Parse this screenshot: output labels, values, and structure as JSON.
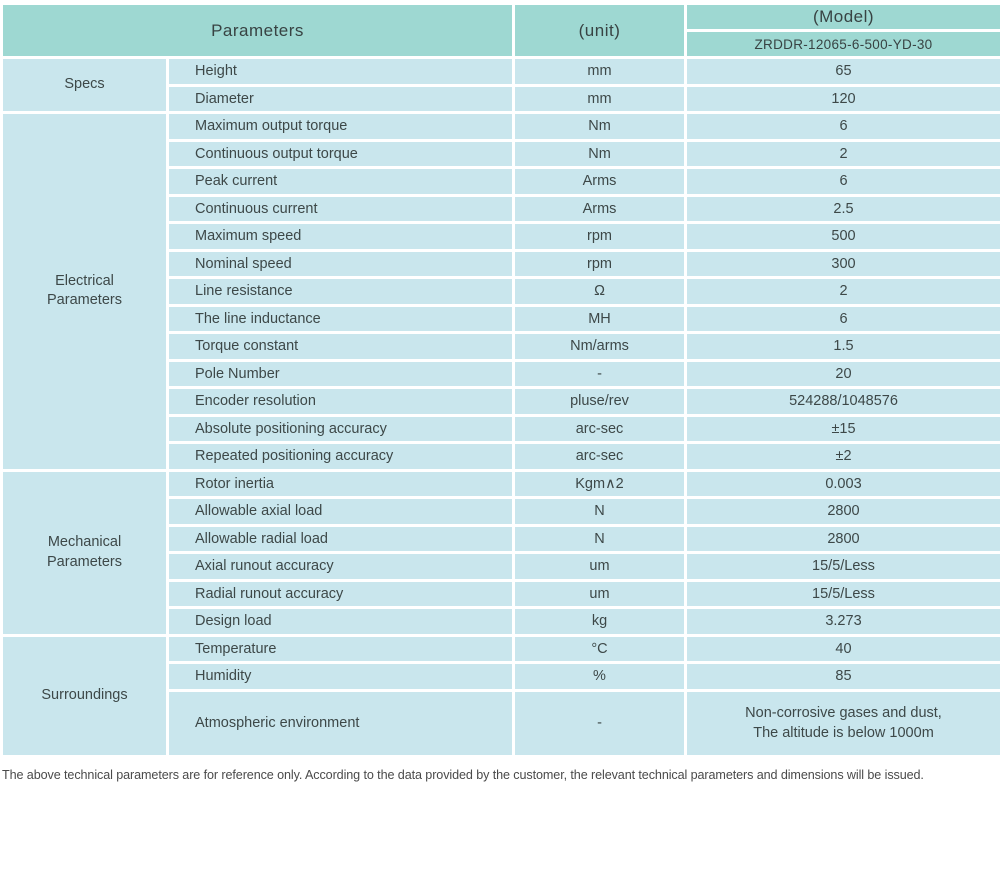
{
  "table": {
    "header": {
      "parameters": "Parameters",
      "unit": "(unit)",
      "model": "(Model)",
      "model_code": "ZRDDR-12065-6-500-YD-30"
    },
    "groups": [
      {
        "name": "Specs",
        "rows": [
          {
            "param": "Height",
            "unit": "mm",
            "value": "65"
          },
          {
            "param": "Diameter",
            "unit": "mm",
            "value": "120"
          }
        ]
      },
      {
        "name": "Electrical Parameters",
        "rows": [
          {
            "param": "Maximum output torque",
            "unit": "Nm",
            "value": "6"
          },
          {
            "param": "Continuous output torque",
            "unit": "Nm",
            "value": "2"
          },
          {
            "param": "Peak current",
            "unit": "Arms",
            "value": "6"
          },
          {
            "param": "Continuous current",
            "unit": "Arms",
            "value": "2.5"
          },
          {
            "param": "Maximum speed",
            "unit": "rpm",
            "value": "500"
          },
          {
            "param": "Nominal speed",
            "unit": "rpm",
            "value": "300"
          },
          {
            "param": "Line resistance",
            "unit": "Ω",
            "value": "2"
          },
          {
            "param": "The line inductance",
            "unit": "MH",
            "value": "6"
          },
          {
            "param": "Torque constant",
            "unit": "Nm/arms",
            "value": "1.5"
          },
          {
            "param": "Pole Number",
            "unit": "-",
            "value": "20"
          },
          {
            "param": "Encoder resolution",
            "unit": "pluse/rev",
            "value": "524288/1048576"
          },
          {
            "param": "Absolute positioning accuracy",
            "unit": "arc-sec",
            "value": "±15"
          },
          {
            "param": "Repeated positioning accuracy",
            "unit": "arc-sec",
            "value": "±2"
          }
        ]
      },
      {
        "name": "Mechanical Parameters",
        "rows": [
          {
            "param": "Rotor inertia",
            "unit": "Kgm∧2",
            "value": "0.003"
          },
          {
            "param": "Allowable axial load",
            "unit": "N",
            "value": "2800"
          },
          {
            "param": "Allowable radial load",
            "unit": "N",
            "value": "2800"
          },
          {
            "param": "Axial runout accuracy",
            "unit": "um",
            "value": "15/5/Less"
          },
          {
            "param": "Radial runout accuracy",
            "unit": "um",
            "value": "15/5/Less"
          },
          {
            "param": "Design load",
            "unit": "kg",
            "value": "3.273"
          }
        ]
      },
      {
        "name": "Surroundings",
        "rows": [
          {
            "param": "Temperature",
            "unit": "°C",
            "value": "40"
          },
          {
            "param": "Humidity",
            "unit": "%",
            "value": "85"
          },
          {
            "param": "Atmospheric environment",
            "unit": "-",
            "value": "Non-corrosive gases and dust,\nThe altitude is below 1000m",
            "tall": true
          }
        ]
      }
    ]
  },
  "footer_note": "The above technical parameters are for reference only. According to the data provided by the customer, the relevant technical parameters and dimensions will be issued.",
  "colors": {
    "header_bg": "#9ed8d2",
    "body_bg": "#c9e6ed",
    "border": "#ffffff",
    "text_dark": "#384343",
    "text_body": "#3d4848",
    "footer_text": "#4a4a4a"
  }
}
